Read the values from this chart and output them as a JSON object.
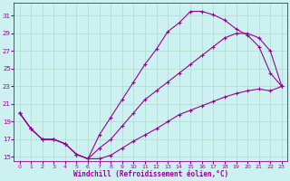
{
  "title": "",
  "xlabel": "Windchill (Refroidissement éolien,°C)",
  "ylabel": "",
  "bg_color": "#cdf0f0",
  "line_color": "#990099",
  "grid_color": "#aaddcc",
  "xlim": [
    -0.5,
    23.5
  ],
  "ylim": [
    14.5,
    32.5
  ],
  "xticks": [
    0,
    1,
    2,
    3,
    4,
    5,
    6,
    7,
    8,
    9,
    10,
    11,
    12,
    13,
    14,
    15,
    16,
    17,
    18,
    19,
    20,
    21,
    22,
    23
  ],
  "yticks": [
    15,
    17,
    19,
    21,
    23,
    25,
    27,
    29,
    31
  ],
  "line1_x": [
    0,
    1,
    2,
    3,
    4,
    5,
    6,
    7,
    8,
    9,
    10,
    11,
    12,
    13,
    14,
    15,
    16,
    17,
    18,
    19,
    20,
    21,
    22,
    23
  ],
  "line1_y": [
    20.0,
    18.2,
    17.0,
    17.0,
    16.5,
    15.3,
    14.8,
    17.5,
    19.5,
    21.5,
    23.5,
    25.5,
    27.2,
    29.2,
    30.2,
    31.5,
    31.5,
    31.1,
    30.5,
    29.5,
    28.8,
    27.5,
    24.5,
    23.0
  ],
  "line2_x": [
    0,
    1,
    2,
    3,
    4,
    5,
    6,
    7,
    8,
    9,
    10,
    11,
    12,
    13,
    14,
    15,
    16,
    17,
    18,
    19,
    20,
    21,
    22,
    23
  ],
  "line2_y": [
    20.0,
    18.2,
    17.0,
    17.0,
    16.5,
    15.3,
    14.8,
    16.0,
    17.0,
    18.5,
    20.0,
    21.5,
    22.5,
    23.5,
    24.5,
    25.5,
    26.5,
    27.5,
    28.5,
    29.0,
    29.0,
    28.5,
    27.0,
    23.0
  ],
  "line3_x": [
    0,
    1,
    2,
    3,
    4,
    5,
    6,
    7,
    8,
    9,
    10,
    11,
    12,
    13,
    14,
    15,
    16,
    17,
    18,
    19,
    20,
    21,
    22,
    23
  ],
  "line3_y": [
    20.0,
    18.2,
    17.0,
    17.0,
    16.5,
    15.3,
    14.8,
    14.8,
    15.2,
    16.0,
    16.8,
    17.5,
    18.2,
    19.0,
    19.8,
    20.3,
    20.8,
    21.3,
    21.8,
    22.2,
    22.5,
    22.7,
    22.5,
    23.0
  ]
}
